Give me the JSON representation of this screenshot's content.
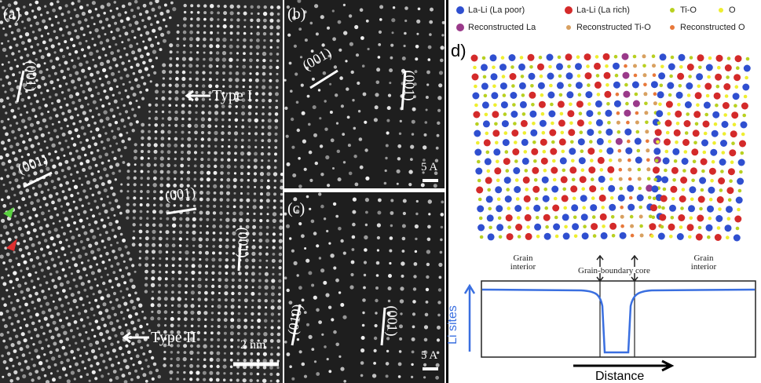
{
  "panel_a": {
    "label": "(a)",
    "planes": [
      "(001)",
      "(001)",
      "(001)",
      "(001)"
    ],
    "type_1": "Type I",
    "type_2": "Type II",
    "scale": "2 nm"
  },
  "panel_b": {
    "label": "(b)",
    "planes": [
      "(001)",
      "(001)"
    ],
    "scale": "5 A"
  },
  "panel_c": {
    "label": "(c)",
    "planes": [
      "(010)",
      "(001)"
    ],
    "scale": "5 A"
  },
  "panel_d": {
    "label": "d)",
    "legend": [
      {
        "name": "La-Li (La poor)",
        "color": "#2f4fd0"
      },
      {
        "name": "La-Li (La rich)",
        "color": "#d42a2a"
      },
      {
        "name": "Ti-O",
        "color": "#b8d020"
      },
      {
        "name": "O",
        "color": "#eeee30"
      },
      {
        "name": "Reconstructed La",
        "color": "#9a3a8a"
      },
      {
        "name": "Reconstructed Ti-O",
        "color": "#d8a060"
      },
      {
        "name": "Reconstructed O",
        "color": "#e8783a"
      }
    ],
    "grain_left": "Grain interior",
    "core": "Grain-boundary core",
    "grain_right": "Grain interior",
    "y_label": "Li sites",
    "x_label": "Distance"
  }
}
